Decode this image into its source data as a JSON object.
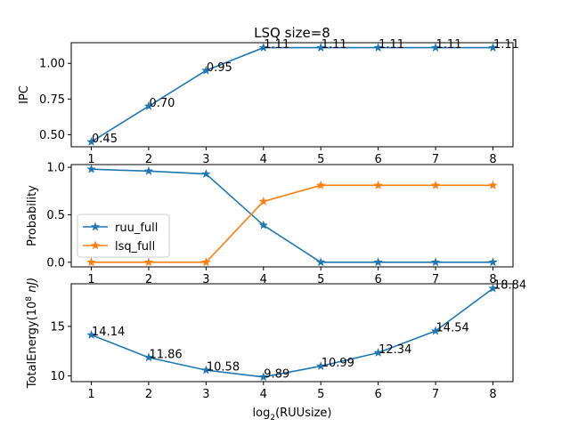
{
  "chart_data": [
    {
      "type": "line",
      "title": "LSQ  size=8",
      "ylabel": "IPC",
      "xlabel": "",
      "x": [
        1,
        2,
        3,
        4,
        5,
        6,
        7,
        8
      ],
      "xlim": [
        0.65,
        8.35
      ],
      "ylim": [
        0.415,
        1.145
      ],
      "yticks": [
        0.5,
        0.75,
        1.0
      ],
      "ytick_labels": [
        "0.50",
        "0.75",
        "1.00"
      ],
      "series": [
        {
          "values": [
            0.45,
            0.7,
            0.95,
            1.11,
            1.11,
            1.11,
            1.11,
            1.11
          ],
          "labels": [
            "0.45",
            "0.70",
            "0.95",
            "1.11",
            "1.11",
            "1.11",
            "1.11",
            "1.11"
          ],
          "color": "#1f77b4",
          "marker": "star"
        }
      ]
    },
    {
      "type": "line",
      "title": "",
      "ylabel": "Probability",
      "xlabel": "",
      "x": [
        1,
        2,
        3,
        4,
        5,
        6,
        7,
        8
      ],
      "xlim": [
        0.65,
        8.35
      ],
      "ylim": [
        -0.049,
        1.029
      ],
      "yticks": [
        0.0,
        0.5,
        1.0
      ],
      "ytick_labels": [
        "0.0",
        "0.5",
        "1.0"
      ],
      "legend": "center-left",
      "series": [
        {
          "name": "ruu_full",
          "values": [
            0.98,
            0.96,
            0.93,
            0.39,
            0.0,
            0.0,
            0.0,
            0.0
          ],
          "color": "#1f77b4",
          "marker": "star"
        },
        {
          "name": "lsq_full",
          "values": [
            0.0,
            0.0,
            0.0,
            0.64,
            0.81,
            0.81,
            0.81,
            0.81
          ],
          "color": "#ff7f0e",
          "marker": "star"
        }
      ]
    },
    {
      "type": "line",
      "title": "",
      "ylabel": "TotalEnergy(10^8 nJ)",
      "ylabel_parts": {
        "main": "TotalEnergy(10",
        "sup": "8",
        "tail": " nJ)"
      },
      "xlabel": "log2(RUUsize)",
      "xlabel_parts": {
        "main": "log",
        "sub": "2",
        "tail": "(RUUsize)"
      },
      "x": [
        1,
        2,
        3,
        4,
        5,
        6,
        7,
        8
      ],
      "xlim": [
        0.65,
        8.35
      ],
      "ylim": [
        9.42,
        19.31
      ],
      "yticks": [
        10,
        15
      ],
      "ytick_labels": [
        "10",
        "15"
      ],
      "series": [
        {
          "values": [
            14.14,
            11.86,
            10.58,
            9.89,
            10.99,
            12.34,
            14.54,
            18.84
          ],
          "labels": [
            "14.14",
            "11.86",
            "10.58",
            "9.89",
            "10.99",
            "12.34",
            "14.54",
            "18.84"
          ],
          "color": "#1f77b4",
          "marker": "star"
        }
      ]
    }
  ]
}
